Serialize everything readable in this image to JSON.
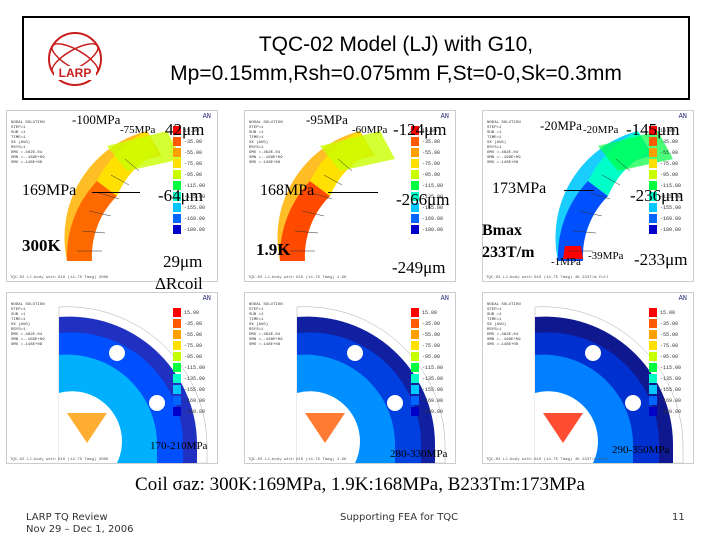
{
  "header": {
    "title_line1": "TQC-02 Model (LJ) with G10,",
    "title_line2": "Mp=0.15mm,Rsh=0.075mm F,St=0-0,Sk=0.3mm",
    "logo_text": "LARP"
  },
  "panel_common": {
    "ansys_tag": "AN",
    "info_text": "NODAL SOLUTION\nSTEP=1\nSUB =1\nTIME=1\nSX (AVG)\nRSYS=1\nDMX =.482E-04\nSMN =-.169E+09\nSMX =.148E+08"
  },
  "panels": [
    {
      "footer": "TQC-02 LJ-body with G10 (14-75 Tmag) 300K"
    },
    {
      "footer": "TQC-02 LJ-body with G10 (14-75 Tmag) 1.9K"
    },
    {
      "footer": "TQC-02 LJ-body with G10 (14-75 Tmag) 4K 233T/m Full"
    },
    {
      "footer": "TQC-02 LJ-body with G10 (14-75 Tmag) 300K"
    },
    {
      "footer": "TQC-02 LJ-body with G10 (14-75 Tmag) 1.9K"
    },
    {
      "footer": "TQC-02 LJ-body with G10 (14-75 Tmag) 4K 233T/m Full"
    }
  ],
  "legend": {
    "colors": [
      "#ff0000",
      "#ff5a00",
      "#ffa000",
      "#ffe000",
      "#c8ff00",
      "#00ff40",
      "#00ffc8",
      "#00c8ff",
      "#0064ff",
      "#0000c8"
    ],
    "values": [
      "15.00",
      "-35.00",
      "-55.00",
      "-75.00",
      "-95.00",
      "-115.00",
      "-135.00",
      "-155.00",
      "-169.00",
      "-180.00"
    ]
  },
  "labels": {
    "p1_top_stress": "-100MPa",
    "p1_mid_stress": "-75MPa",
    "p1_disp_top": "42μm",
    "p1_left_stress": "169MPa",
    "p1_disp_mid": "-64μm",
    "p1_temp": "300K",
    "p1_disp_bot": "29μm",
    "p1_delta_r": "ΔRcoil",
    "p2_top_stress": "-95MPa",
    "p2_mid_stress": "-60MPa",
    "p2_disp_top": "-124μm",
    "p2_left_stress": "168MPa",
    "p2_disp_mid": "-266μm",
    "p2_temp": "1.9K",
    "p2_disp_bot": "-249μm",
    "p3_top_stress": "-20MPa",
    "p3_mid_stress": "-20MPa",
    "p3_disp_top": "-145μm",
    "p3_left_stress": "173MPa",
    "p3_disp_mid": "-236μm",
    "p3_bmax": "Bmax",
    "p3_grad": "233T/m",
    "p3_low_stress1": "-1MPa",
    "p3_low_stress2": "-39MPa",
    "p3_disp_bot": "-233μm",
    "p4_range": "170-210MPa",
    "p5_range": "280-330MPa",
    "p6_range": "290-350MPa"
  },
  "summary": "Coil σaz: 300K:169MPa, 1.9K:168MPa, B233Tm:173MPa",
  "footer": {
    "left_line1": "LARP TQ Review",
    "left_line2": "Nov 29 – Dec 1, 2006",
    "center": "Supporting FEA for TQC",
    "page": "11"
  }
}
